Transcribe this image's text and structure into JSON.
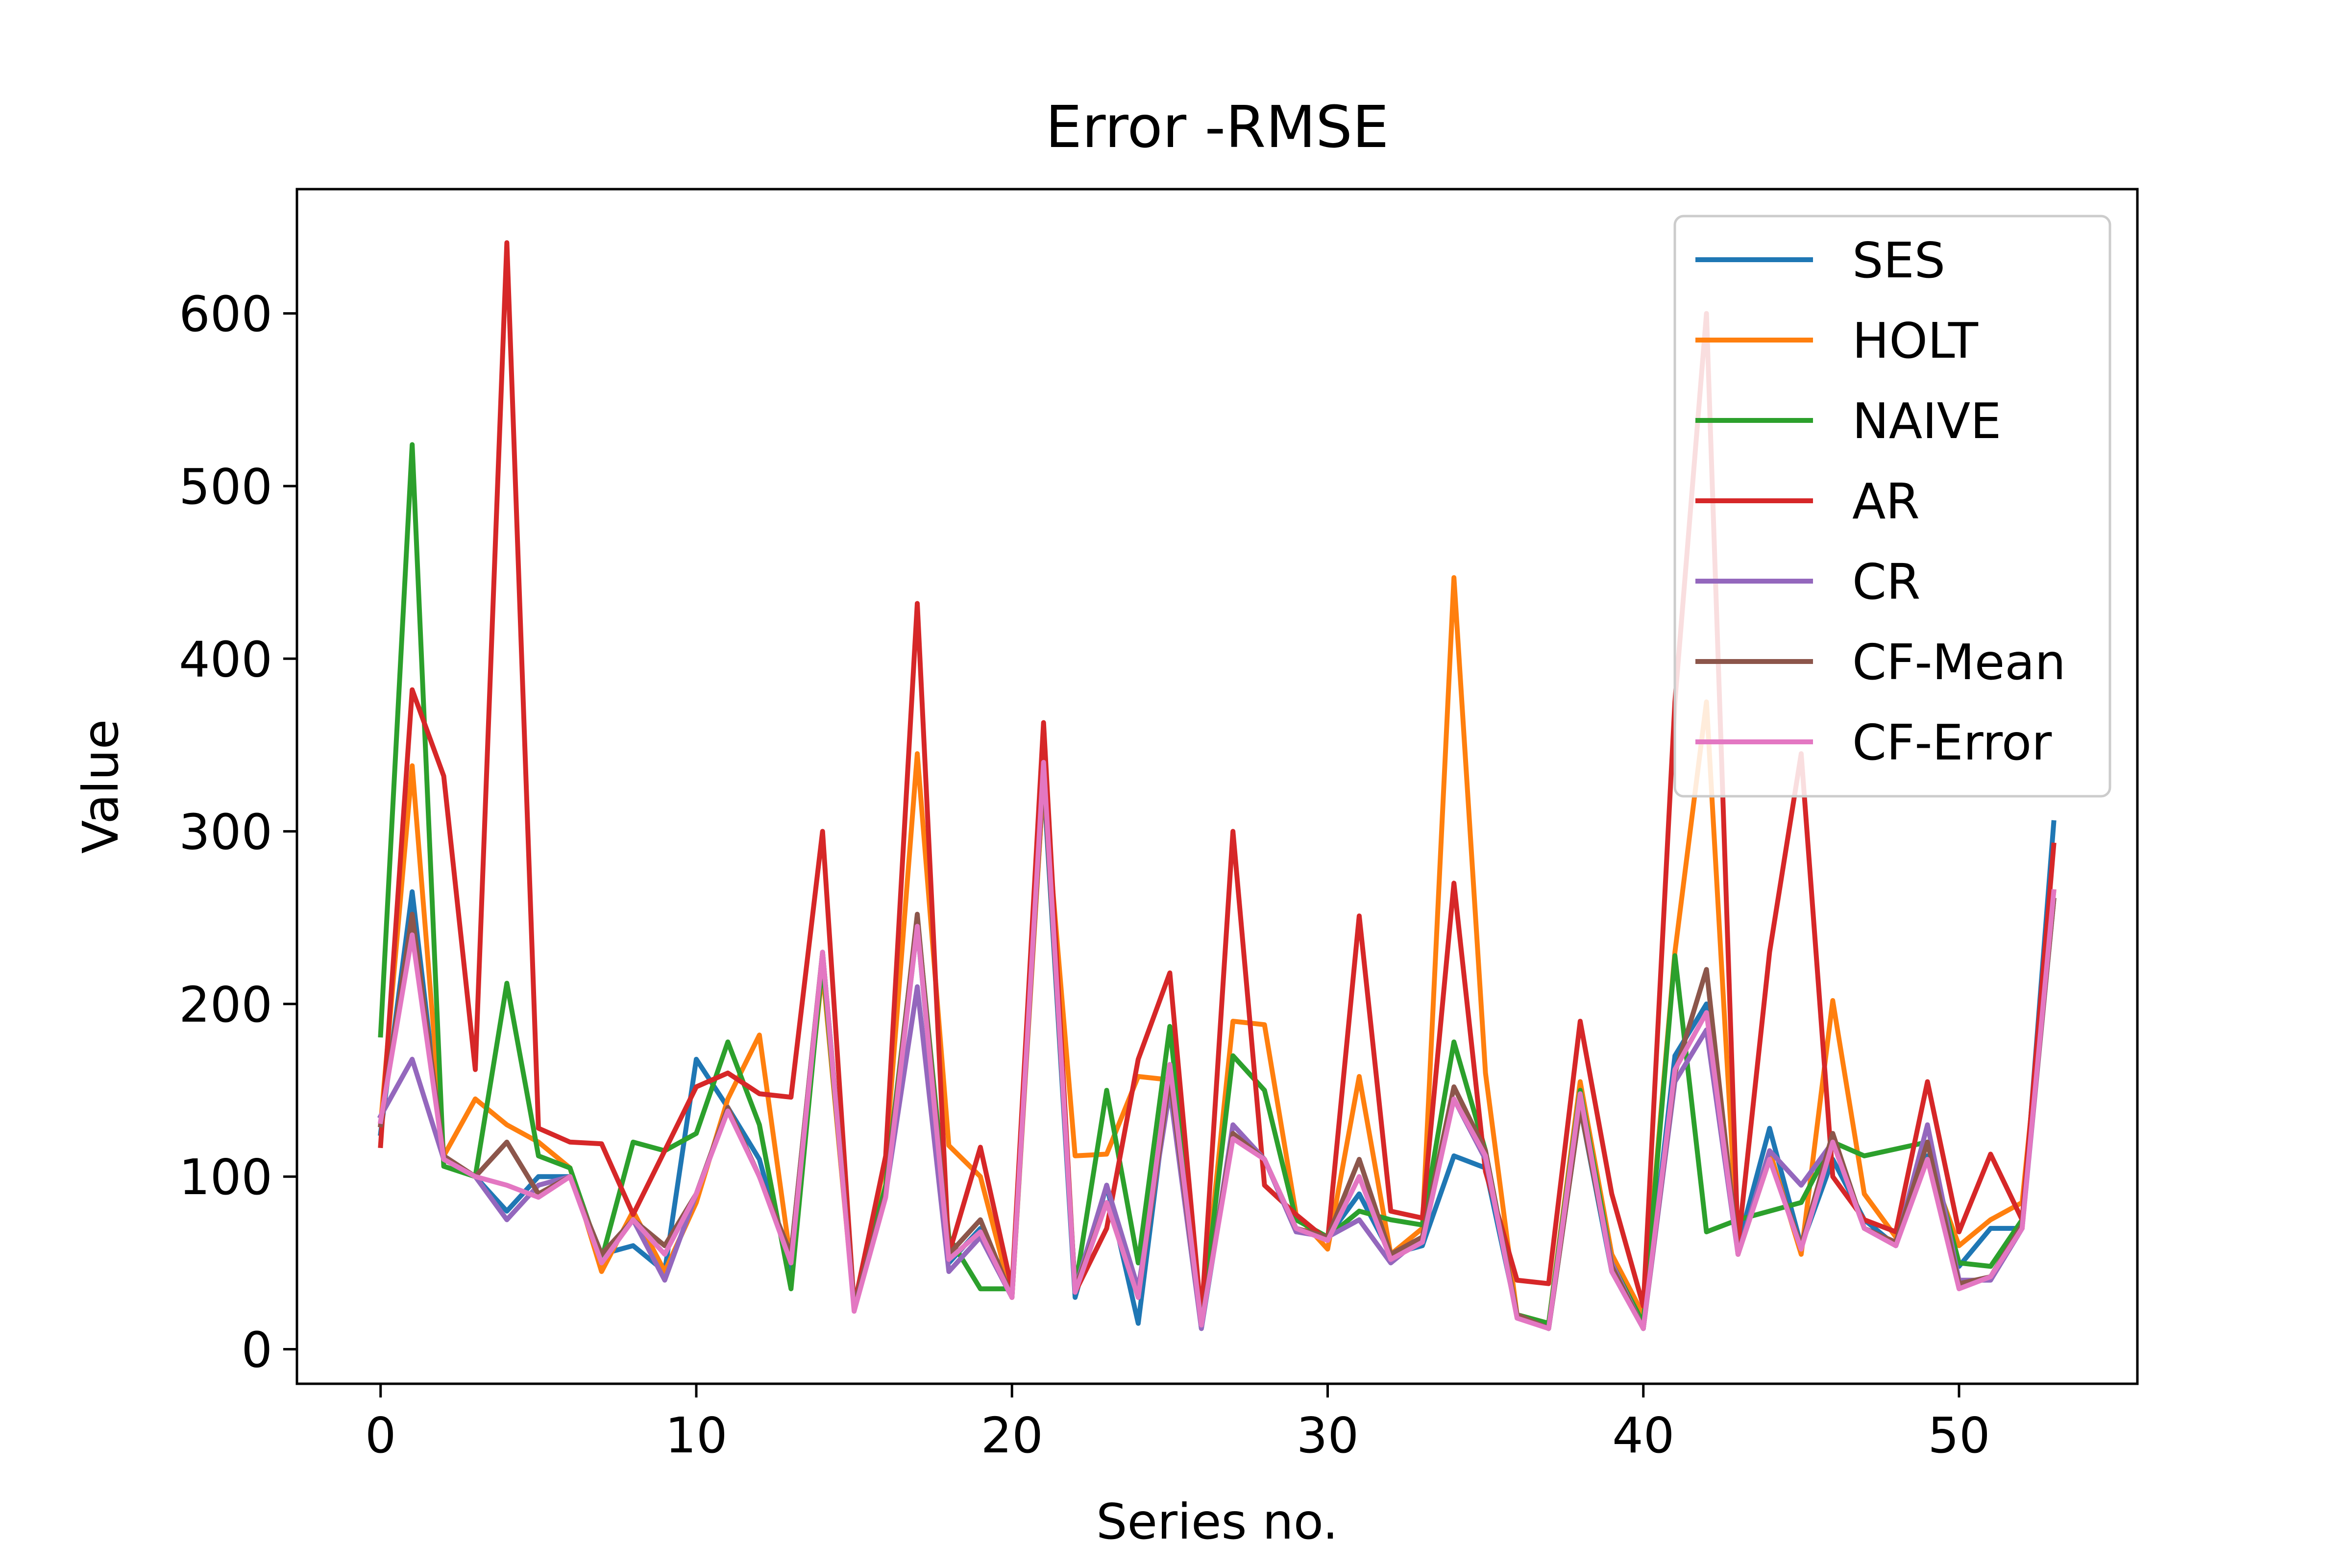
{
  "chart_data": {
    "type": "line",
    "title": "Error -RMSE",
    "xlabel": "Series no.",
    "ylabel": "Value",
    "xlim": [
      -2.65,
      55.65
    ],
    "ylim": [
      -20,
      672
    ],
    "xticks": [
      0,
      10,
      20,
      30,
      40,
      50
    ],
    "yticks": [
      0,
      100,
      200,
      300,
      400,
      500,
      600
    ],
    "grid": false,
    "legend_position": "top-right",
    "series": [
      {
        "name": "SES",
        "color": "#1f77b4",
        "values": [
          125,
          265,
          110,
          100,
          80,
          100,
          100,
          55,
          60,
          45,
          168,
          140,
          110,
          45,
          225,
          25,
          90,
          245,
          50,
          70,
          35,
          330,
          30,
          95,
          15,
          160,
          12,
          125,
          110,
          70,
          65,
          90,
          55,
          60,
          112,
          105,
          20,
          12,
          140,
          45,
          12,
          170,
          200,
          60,
          128,
          60,
          110,
          75,
          60,
          112,
          48,
          70,
          70,
          305
        ]
      },
      {
        "name": "HOLT",
        "color": "#ff7f0e",
        "values": [
          130,
          338,
          112,
          145,
          130,
          120,
          105,
          45,
          80,
          45,
          85,
          145,
          182,
          50,
          220,
          25,
          110,
          345,
          118,
          100,
          30,
          330,
          112,
          113,
          158,
          156,
          15,
          190,
          188,
          78,
          58,
          158,
          55,
          70,
          447,
          160,
          20,
          15,
          155,
          55,
          20,
          230,
          375,
          55,
          115,
          55,
          202,
          90,
          65,
          110,
          60,
          75,
          85,
          265
        ]
      },
      {
        "name": "NAIVE",
        "color": "#2ca02c",
        "values": [
          182,
          524,
          106,
          100,
          212,
          112,
          105,
          52,
          120,
          115,
          125,
          178,
          130,
          35,
          225,
          25,
          95,
          250,
          65,
          35,
          35,
          335,
          35,
          150,
          50,
          187,
          15,
          170,
          150,
          75,
          65,
          80,
          75,
          72,
          178,
          115,
          20,
          15,
          150,
          50,
          15,
          228,
          68,
          75,
          80,
          85,
          120,
          112,
          116,
          120,
          50,
          48,
          75,
          260
        ]
      },
      {
        "name": "AR",
        "color": "#d62728",
        "values": [
          118,
          382,
          332,
          162,
          641,
          128,
          120,
          119,
          78,
          115,
          152,
          160,
          148,
          146,
          300,
          25,
          112,
          432,
          55,
          117,
          35,
          363,
          33,
          70,
          168,
          218,
          18,
          300,
          95,
          78,
          63,
          251,
          80,
          76,
          270,
          103,
          40,
          38,
          190,
          90,
          25,
          375,
          600,
          60,
          230,
          345,
          100,
          75,
          68,
          155,
          68,
          113,
          75,
          292
        ]
      },
      {
        "name": "CR",
        "color": "#9467bd",
        "values": [
          135,
          168,
          110,
          100,
          75,
          95,
          100,
          55,
          75,
          40,
          90,
          140,
          100,
          55,
          230,
          25,
          90,
          210,
          45,
          65,
          30,
          335,
          35,
          95,
          35,
          150,
          12,
          130,
          110,
          68,
          65,
          75,
          50,
          65,
          145,
          110,
          20,
          12,
          140,
          50,
          12,
          155,
          185,
          55,
          115,
          95,
          120,
          70,
          60,
          130,
          40,
          40,
          70,
          260
        ]
      },
      {
        "name": "CF-Mean",
        "color": "#8c564b",
        "values": [
          130,
          252,
          112,
          100,
          120,
          90,
          100,
          55,
          75,
          60,
          90,
          140,
          100,
          55,
          230,
          25,
          90,
          252,
          55,
          75,
          30,
          335,
          35,
          85,
          30,
          158,
          15,
          125,
          110,
          70,
          65,
          110,
          55,
          65,
          152,
          115,
          20,
          12,
          140,
          48,
          12,
          160,
          220,
          55,
          110,
          60,
          125,
          70,
          62,
          120,
          38,
          42,
          72,
          260
        ]
      },
      {
        "name": "CF-Error",
        "color": "#e377c2",
        "values": [
          132,
          240,
          110,
          100,
          95,
          88,
          100,
          50,
          75,
          55,
          90,
          138,
          100,
          50,
          230,
          22,
          88,
          245,
          52,
          68,
          30,
          340,
          33,
          85,
          30,
          165,
          14,
          122,
          110,
          70,
          63,
          100,
          52,
          62,
          145,
          112,
          18,
          12,
          148,
          45,
          12,
          162,
          195,
          55,
          110,
          58,
          120,
          70,
          60,
          110,
          35,
          42,
          70,
          265
        ]
      }
    ]
  }
}
